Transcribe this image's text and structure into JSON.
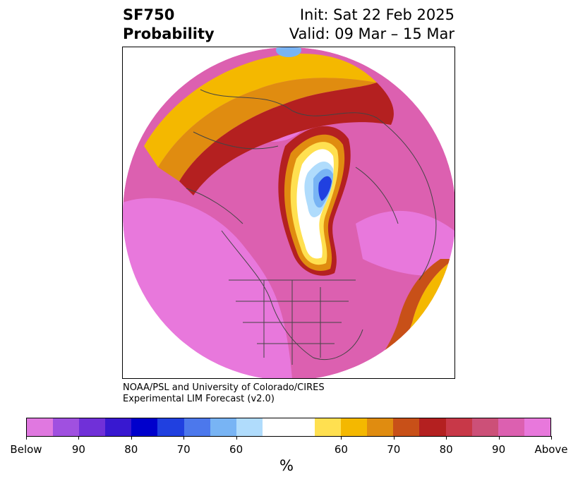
{
  "title": {
    "variable": "SF750",
    "product": "Probability",
    "init": "Init: Sat 22 Feb 2025",
    "valid": "Valid: 09 Mar – 15 Mar"
  },
  "credit": {
    "line1": "NOAA/PSL and University of Colorado/CIRES",
    "line2": "Experimental LIM Forecast (v2.0)"
  },
  "colorbar": {
    "unit": "%",
    "colors": [
      "#e078e0",
      "#a050e0",
      "#7030d8",
      "#3818d0",
      "#0000cc",
      "#2040e0",
      "#4c78ec",
      "#78b4f4",
      "#b0dcfc",
      "#ffffff",
      "#ffe050",
      "#f4b800",
      "#e08c10",
      "#c85018",
      "#b42020",
      "#c83848",
      "#cc5078",
      "#dc60b0",
      "#e878dc"
    ],
    "widths": [
      1,
      1,
      1,
      1,
      1,
      1,
      1,
      1,
      1,
      2,
      1,
      1,
      1,
      1,
      1,
      1,
      1,
      1,
      1
    ],
    "ticks": [
      "Below",
      "90",
      "80",
      "70",
      "60",
      "60",
      "70",
      "80",
      "90",
      "Above"
    ]
  },
  "map": {
    "projection": "north-polar-stereographic",
    "features": [
      "coastlines",
      "country-borders",
      "state-borders"
    ]
  }
}
